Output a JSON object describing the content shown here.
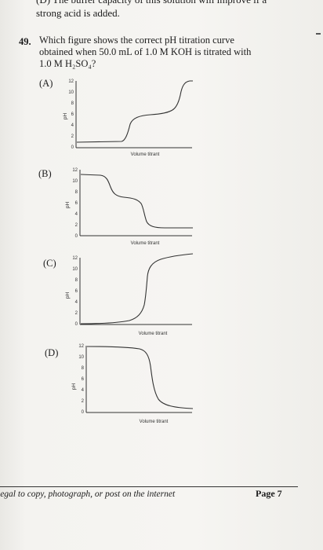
{
  "header": {
    "cut_line": "(D)   The buffer capacity of this solution will improve if a",
    "line2": "strong acid is added."
  },
  "question": {
    "number": "49.",
    "lines": [
      "Which figure shows the correct pH titration curve",
      "obtained when 50.0 mL of 1.0 M KOH is titrated with",
      "1.0 M H₂SO₄?"
    ]
  },
  "options": [
    {
      "label": "(A)",
      "ylabel": "pH",
      "xlabel": "Volume titrant",
      "ticks": [
        "12",
        "10",
        "8",
        "6",
        "4",
        "2",
        "0"
      ]
    },
    {
      "label": "(B)",
      "ylabel": "pH",
      "xlabel": "Volume titrant",
      "ticks": [
        "12",
        "10",
        "8",
        "6",
        "4",
        "2",
        "0"
      ]
    },
    {
      "label": "(C)",
      "ylabel": "pH",
      "xlabel": "Volume titrant",
      "ticks": [
        "12",
        "10",
        "8",
        "6",
        "4",
        "2",
        "0"
      ]
    },
    {
      "label": "(D)",
      "ylabel": "pH",
      "xlabel": "Volume titrant",
      "ticks": [
        "12",
        "10",
        "8",
        "6",
        "4",
        "2",
        "0"
      ]
    }
  ],
  "footer": {
    "left": "legal to copy, photograph, or post on the internet",
    "right": "Page 7"
  }
}
